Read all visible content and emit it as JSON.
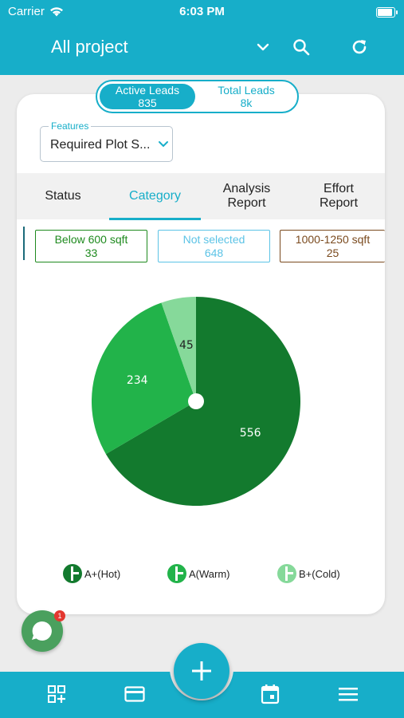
{
  "status_bar": {
    "carrier": "Carrier",
    "time": "6:03 PM"
  },
  "header": {
    "title": "All project",
    "icons": [
      "chevron-down-icon",
      "search-icon",
      "refresh-icon"
    ]
  },
  "lead_toggle": {
    "active": {
      "label": "Active Leads",
      "count": "835"
    },
    "total": {
      "label": "Total Leads",
      "count": "8k"
    }
  },
  "features": {
    "label": "Features",
    "value": "Required Plot S..."
  },
  "tabs": [
    {
      "label": "Status"
    },
    {
      "label": "Category",
      "active": true
    },
    {
      "label": "Analysis Report"
    },
    {
      "label": "Effort Report"
    }
  ],
  "chips": [
    {
      "label": "Below 600 sqft",
      "count": "33",
      "color": "#1e8a1e"
    },
    {
      "label": "Not selected",
      "count": "648",
      "color": "#5cc3e6"
    },
    {
      "label": "1000-1250 sqft",
      "count": "25",
      "color": "#7a4a1e"
    }
  ],
  "chart_data": {
    "type": "pie",
    "slices": [
      {
        "label": "A+(Hot)",
        "value": 556,
        "color": "#137a2e"
      },
      {
        "label": "A(Warm)",
        "value": 234,
        "color": "#22b34a"
      },
      {
        "label": "B+(Cold)",
        "value": 45,
        "color": "#86d99a"
      }
    ],
    "legend_position": "bottom"
  },
  "chat": {
    "badge": "1"
  },
  "bottom_nav": {
    "icons": [
      "dashboard-add-icon",
      "card-icon",
      "add-icon",
      "calendar-icon",
      "menu-icon"
    ]
  }
}
